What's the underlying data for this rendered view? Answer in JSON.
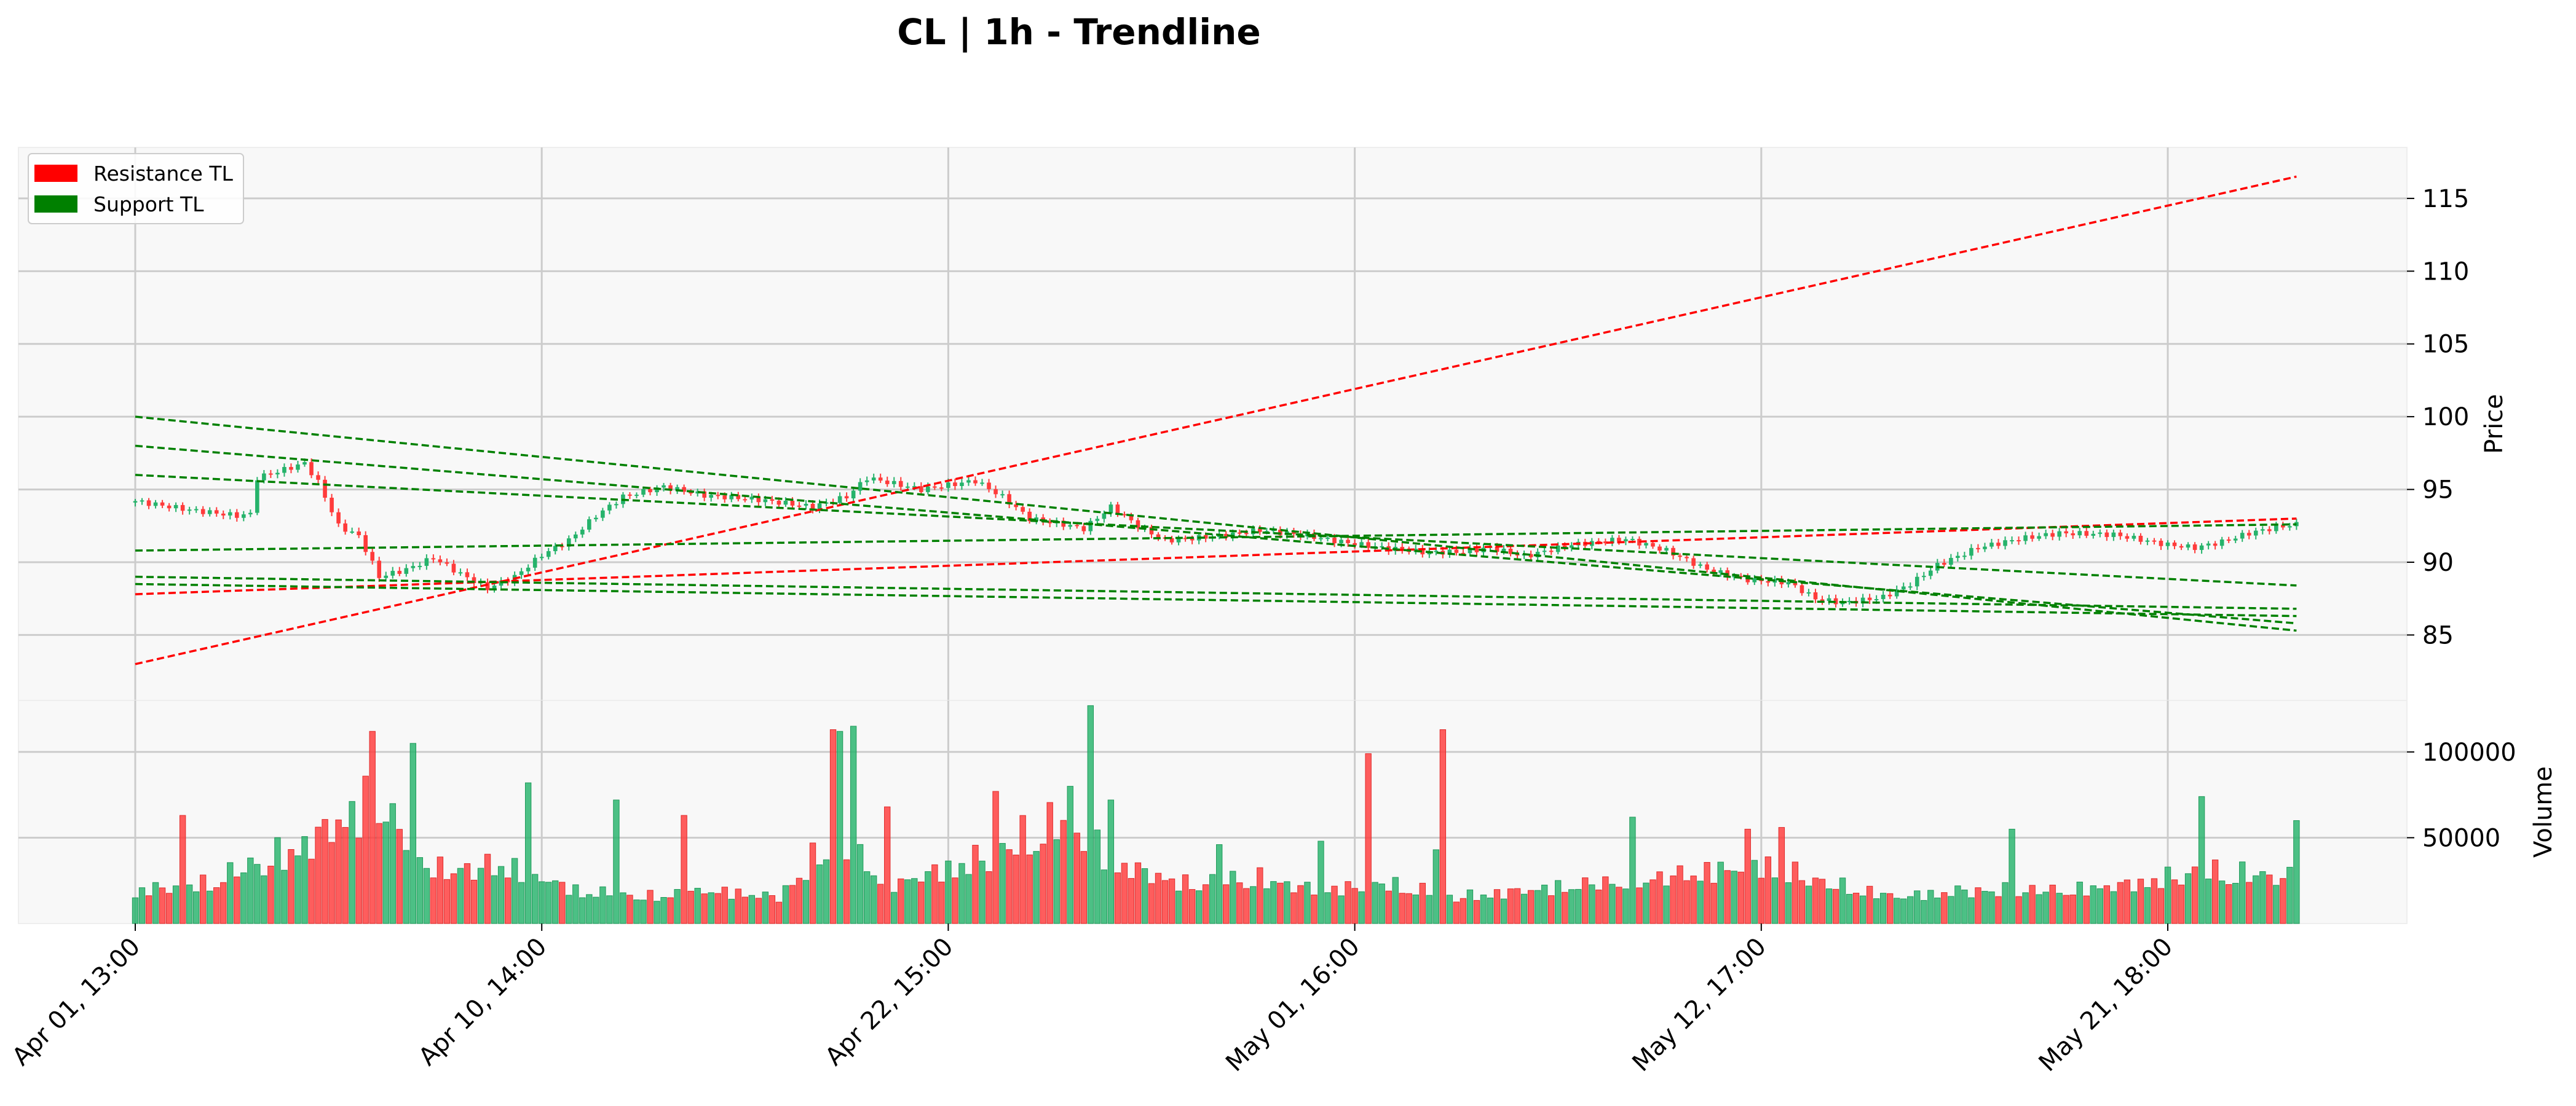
{
  "chart_data": {
    "type": "candlestick",
    "title": "CL | 1h - Trendline",
    "ylabel": "Price",
    "volume_label": "Volume",
    "ylim": [
      80.5,
      118.5
    ],
    "volume_ylim": [
      0,
      130000
    ],
    "grid": true,
    "legend_position": "top-left",
    "colors": {
      "up": "#26b36b",
      "down": "#ff3b3b",
      "resistance": "#ff0000",
      "support": "#008000",
      "panel_bg": "#f8f8f8",
      "grid": "#cccccc"
    },
    "legend": [
      {
        "label": "Resistance TL",
        "color": "#ff0000"
      },
      {
        "label": "Support TL",
        "color": "#008000"
      }
    ],
    "x_ticks": [
      {
        "index": 0,
        "label": "Apr 01, 13:00"
      },
      {
        "index": 60,
        "label": "Apr 10, 14:00"
      },
      {
        "index": 120,
        "label": "Apr 22, 15:00"
      },
      {
        "index": 180,
        "label": "May 01, 16:00"
      },
      {
        "index": 240,
        "label": "May 12, 17:00"
      },
      {
        "index": 300,
        "label": "May 21, 18:00"
      }
    ],
    "y_ticks": [
      85,
      90,
      95,
      100,
      105,
      110,
      115
    ],
    "volume_ticks": [
      50000,
      100000
    ],
    "bar_count": 320,
    "price_anchors": [
      [
        0,
        94.2
      ],
      [
        8,
        93.6
      ],
      [
        15,
        93.2
      ],
      [
        17,
        93.3
      ],
      [
        18,
        95.8
      ],
      [
        25,
        96.8
      ],
      [
        27,
        95.5
      ],
      [
        30,
        92.5
      ],
      [
        33,
        91.8
      ],
      [
        36,
        89.0
      ],
      [
        40,
        89.5
      ],
      [
        44,
        90.3
      ],
      [
        48,
        89.2
      ],
      [
        52,
        88.2
      ],
      [
        56,
        89.0
      ],
      [
        60,
        90.5
      ],
      [
        64,
        91.5
      ],
      [
        68,
        93.2
      ],
      [
        72,
        94.5
      ],
      [
        78,
        95.2
      ],
      [
        84,
        94.6
      ],
      [
        92,
        94.3
      ],
      [
        100,
        93.8
      ],
      [
        105,
        94.5
      ],
      [
        108,
        95.8
      ],
      [
        116,
        95.0
      ],
      [
        124,
        95.6
      ],
      [
        128,
        94.5
      ],
      [
        132,
        93.0
      ],
      [
        137,
        92.6
      ],
      [
        140,
        92.3
      ],
      [
        144,
        93.8
      ],
      [
        148,
        92.5
      ],
      [
        152,
        91.5
      ],
      [
        160,
        91.8
      ],
      [
        166,
        92.2
      ],
      [
        172,
        91.9
      ],
      [
        178,
        91.4
      ],
      [
        184,
        91.0
      ],
      [
        190,
        90.7
      ],
      [
        196,
        90.7
      ],
      [
        200,
        91.0
      ],
      [
        205,
        90.4
      ],
      [
        212,
        91.2
      ],
      [
        220,
        91.6
      ],
      [
        226,
        90.8
      ],
      [
        232,
        89.5
      ],
      [
        238,
        88.8
      ],
      [
        244,
        88.6
      ],
      [
        248,
        87.5
      ],
      [
        252,
        87.2
      ],
      [
        258,
        87.6
      ],
      [
        262,
        88.5
      ],
      [
        266,
        89.8
      ],
      [
        272,
        91.0
      ],
      [
        278,
        91.6
      ],
      [
        284,
        92.0
      ],
      [
        292,
        91.9
      ],
      [
        300,
        91.2
      ],
      [
        304,
        91.0
      ],
      [
        308,
        91.4
      ],
      [
        312,
        92.0
      ],
      [
        316,
        92.4
      ],
      [
        319,
        92.6
      ]
    ],
    "volume_anchors": [
      [
        0,
        20000
      ],
      [
        10,
        25000
      ],
      [
        25,
        55000
      ],
      [
        35,
        90000
      ],
      [
        45,
        35000
      ],
      [
        55,
        40000
      ],
      [
        65,
        20000
      ],
      [
        75,
        15000
      ],
      [
        85,
        20000
      ],
      [
        95,
        15000
      ],
      [
        103,
        60000
      ],
      [
        112,
        25000
      ],
      [
        125,
        45000
      ],
      [
        137,
        75000
      ],
      [
        145,
        40000
      ],
      [
        155,
        25000
      ],
      [
        165,
        30000
      ],
      [
        175,
        20000
      ],
      [
        185,
        25000
      ],
      [
        195,
        15000
      ],
      [
        205,
        20000
      ],
      [
        215,
        25000
      ],
      [
        225,
        30000
      ],
      [
        240,
        40000
      ],
      [
        250,
        25000
      ],
      [
        260,
        15000
      ],
      [
        270,
        20000
      ],
      [
        285,
        20000
      ],
      [
        295,
        25000
      ],
      [
        305,
        35000
      ],
      [
        319,
        30000
      ]
    ],
    "volume_spikes": [
      [
        7,
        63000
      ],
      [
        35,
        112000
      ],
      [
        41,
        105000
      ],
      [
        58,
        82000
      ],
      [
        71,
        72000
      ],
      [
        81,
        63000
      ],
      [
        103,
        113000
      ],
      [
        104,
        112000
      ],
      [
        106,
        115000
      ],
      [
        111,
        68000
      ],
      [
        127,
        77000
      ],
      [
        138,
        80000
      ],
      [
        141,
        127000
      ],
      [
        144,
        72000
      ],
      [
        160,
        46000
      ],
      [
        175,
        48000
      ],
      [
        176,
        43000
      ],
      [
        176,
        18000
      ],
      [
        182,
        99000
      ],
      [
        192,
        43000
      ],
      [
        193,
        113000
      ],
      [
        221,
        62000
      ],
      [
        238,
        55000
      ],
      [
        243,
        56000
      ],
      [
        277,
        55000
      ],
      [
        305,
        74000
      ],
      [
        319,
        60000
      ]
    ],
    "trendlines": [
      {
        "kind": "resistance",
        "start": [
          0,
          83.0
        ],
        "end": [
          319,
          116.5
        ]
      },
      {
        "kind": "resistance",
        "start": [
          0,
          87.8
        ],
        "end": [
          319,
          93.0
        ]
      },
      {
        "kind": "support",
        "start": [
          0,
          100.0
        ],
        "end": [
          319,
          85.3
        ]
      },
      {
        "kind": "support",
        "start": [
          0,
          98.0
        ],
        "end": [
          319,
          85.8
        ]
      },
      {
        "kind": "support",
        "start": [
          0,
          96.0
        ],
        "end": [
          319,
          88.4
        ]
      },
      {
        "kind": "support",
        "start": [
          0,
          90.8
        ],
        "end": [
          319,
          92.6
        ]
      },
      {
        "kind": "support",
        "start": [
          0,
          89.0
        ],
        "end": [
          319,
          86.8
        ]
      },
      {
        "kind": "support",
        "start": [
          0,
          88.5
        ],
        "end": [
          319,
          86.3
        ]
      }
    ]
  }
}
